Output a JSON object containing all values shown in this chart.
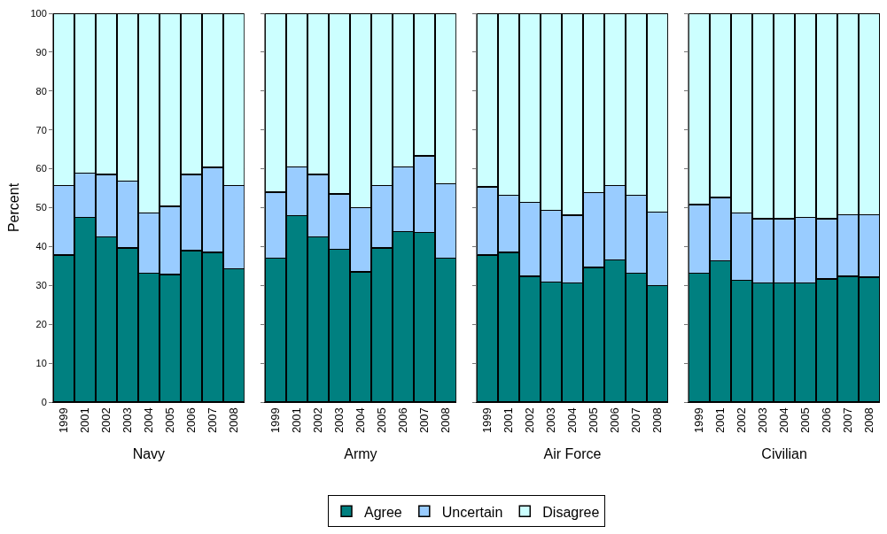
{
  "chart_data": [
    {
      "type": "bar",
      "stacked": true,
      "xlabel": "Navy",
      "ylabel": "Percent",
      "categories": [
        "1999",
        "2001",
        "2002",
        "2003",
        "2004",
        "2005",
        "2006",
        "2007",
        "2008"
      ],
      "series": [
        {
          "name": "Agree",
          "color": "#008080",
          "values": [
            37.8,
            47.5,
            42.5,
            39.6,
            33.2,
            32.8,
            38.9,
            38.5,
            34.3
          ]
        },
        {
          "name": "Uncertain",
          "color": "#99ccff",
          "values": [
            17.9,
            11.4,
            16.1,
            17.2,
            15.4,
            17.5,
            19.7,
            21.9,
            21.4
          ]
        },
        {
          "name": "Disagree",
          "color": "#ccffff",
          "values": [
            44.3,
            41.1,
            41.4,
            43.2,
            51.4,
            49.7,
            41.4,
            39.6,
            44.3
          ]
        }
      ],
      "ylim": [
        0,
        100
      ],
      "yticks": [
        0,
        10,
        20,
        30,
        40,
        50,
        60,
        70,
        80,
        90,
        100
      ],
      "grid": "y",
      "legend": "bottom"
    },
    {
      "type": "bar",
      "stacked": true,
      "xlabel": "Army",
      "categories": [
        "1999",
        "2001",
        "2002",
        "2003",
        "2004",
        "2005",
        "2006",
        "2007",
        "2008"
      ],
      "series": [
        {
          "color": "#008080",
          "values": [
            37,
            48,
            42.5,
            39.3,
            33.5,
            39.6,
            43.9,
            43.6,
            37
          ]
        },
        {
          "color": "#99ccff",
          "values": [
            17,
            12.5,
            16.1,
            14.2,
            16.5,
            16.1,
            16.6,
            19.7,
            19.1
          ]
        },
        {
          "color": "#ccffff",
          "values": [
            46,
            39.5,
            41.4,
            46.5,
            50,
            44.3,
            39.5,
            36.7,
            43.9
          ]
        }
      ],
      "ylim": [
        0,
        100
      ],
      "yticks": [
        0,
        10,
        20,
        30,
        40,
        50,
        60,
        70,
        80,
        90,
        100
      ],
      "grid": "y",
      "tick_labels": "x"
    },
    {
      "type": "bar",
      "stacked": true,
      "xlabel": "Air Force",
      "categories": [
        "1999",
        "2001",
        "2002",
        "2003",
        "2004",
        "2005",
        "2006",
        "2007",
        "2008"
      ],
      "series": [
        {
          "color": "#008080",
          "values": [
            37.8,
            38.5,
            32.3,
            30.9,
            30.6,
            34.6,
            36.6,
            33.2,
            29.9
          ]
        },
        {
          "color": "#99ccff",
          "values": [
            17.6,
            14.7,
            19.1,
            18.4,
            17.5,
            19.3,
            19.1,
            20,
            19
          ]
        },
        {
          "color": "#ccffff",
          "values": [
            44.6,
            46.8,
            48.6,
            50.7,
            51.9,
            46.1,
            44.3,
            46.8,
            51.1
          ]
        }
      ],
      "ylim": [
        0,
        100
      ],
      "yticks": [
        0,
        10,
        20,
        30,
        40,
        50,
        60,
        70,
        80,
        90,
        100
      ],
      "grid": "y",
      "tick_labels": "x"
    },
    {
      "type": "bar",
      "stacked": true,
      "xlabel": "Civilian",
      "categories": [
        "1999",
        "2001",
        "2002",
        "2003",
        "2004",
        "2005",
        "2006",
        "2007",
        "2008"
      ],
      "series": [
        {
          "color": "#008080",
          "values": [
            33.2,
            36.3,
            31.3,
            30.6,
            30.6,
            30.6,
            31.7,
            32.4,
            32.1
          ]
        },
        {
          "color": "#99ccff",
          "values": [
            17.6,
            16.3,
            17.3,
            16.6,
            16.6,
            16.9,
            15.5,
            15.8,
            16.1
          ]
        },
        {
          "color": "#ccffff",
          "values": [
            49.2,
            47.4,
            51.4,
            52.8,
            52.8,
            52.5,
            52.8,
            51.8,
            51.8
          ]
        }
      ],
      "ylim": [
        0,
        100
      ],
      "yticks": [
        0,
        10,
        20,
        30,
        40,
        50,
        60,
        70,
        80,
        90,
        100
      ],
      "grid": "y",
      "tick_labels": "x"
    }
  ]
}
